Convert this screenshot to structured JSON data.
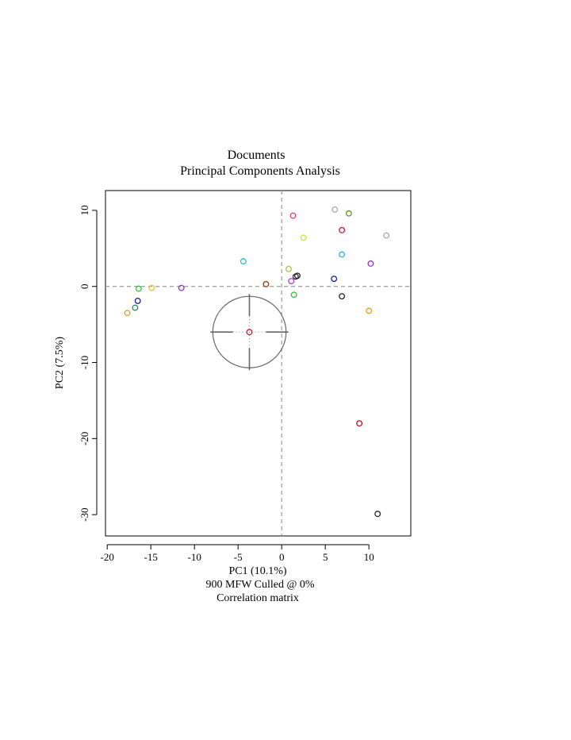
{
  "chart_data": {
    "type": "scatter",
    "title": "Documents",
    "subtitle": "Principal Components Analysis",
    "xlabel": "PC1 (10.1%)",
    "ylabel": "PC2 (7.5%)",
    "caption_lines": [
      "900 MFW  Culled @ 0%",
      "Correlation matrix"
    ],
    "xlim": [
      -20.2,
      14.8
    ],
    "ylim": [
      -32.8,
      12.6
    ],
    "x_ticks": [
      -20,
      -15,
      -10,
      -5,
      0,
      5,
      10
    ],
    "y_ticks": [
      -30,
      -20,
      -10,
      0,
      10
    ],
    "x_tick_labels": [
      "-20",
      "-15",
      "-10",
      "-5",
      "0",
      "5",
      "10"
    ],
    "y_tick_labels": [
      "-30",
      "-20",
      "-10",
      "0",
      "10"
    ],
    "grid": false,
    "reference_lines": {
      "x": 0,
      "y": 0,
      "style": "dashed",
      "color": "#9a9a9a"
    },
    "target_marker": {
      "x": -3.7,
      "y": -6.0,
      "radius_x": 4.2,
      "radius_y": 4.7,
      "color": "#666666",
      "point_color": "#e01030"
    },
    "points": [
      {
        "x": 1.3,
        "y": 9.3,
        "color": "#e0407f"
      },
      {
        "x": 6.1,
        "y": 10.1,
        "color": "#a8a8a8"
      },
      {
        "x": 7.7,
        "y": 9.6,
        "color": "#6b8e23"
      },
      {
        "x": 6.9,
        "y": 7.4,
        "color": "#d0105a"
      },
      {
        "x": 12.0,
        "y": 6.7,
        "color": "#a8a8a8"
      },
      {
        "x": 2.5,
        "y": 6.4,
        "color": "#c8e040"
      },
      {
        "x": 6.9,
        "y": 4.2,
        "color": "#22b8d8"
      },
      {
        "x": 10.2,
        "y": 3.0,
        "color": "#9030c0"
      },
      {
        "x": -4.4,
        "y": 3.3,
        "color": "#22b8d8"
      },
      {
        "x": 0.8,
        "y": 2.3,
        "color": "#b0c040"
      },
      {
        "x": 1.6,
        "y": 1.3,
        "color": "#222222"
      },
      {
        "x": 1.8,
        "y": 1.4,
        "color": "#222222"
      },
      {
        "x": 6.0,
        "y": 1.0,
        "color": "#1a1aa0"
      },
      {
        "x": 1.1,
        "y": 0.7,
        "color": "#b040d0"
      },
      {
        "x": -1.8,
        "y": 0.3,
        "color": "#8b4513"
      },
      {
        "x": -16.4,
        "y": -0.3,
        "color": "#30c030"
      },
      {
        "x": -14.9,
        "y": -0.2,
        "color": "#e0c040"
      },
      {
        "x": -11.5,
        "y": -0.2,
        "color": "#9030c0"
      },
      {
        "x": 1.4,
        "y": -1.1,
        "color": "#30c030"
      },
      {
        "x": 6.9,
        "y": -1.3,
        "color": "#222222"
      },
      {
        "x": -16.5,
        "y": -1.9,
        "color": "#1a1aa0"
      },
      {
        "x": -16.8,
        "y": -2.8,
        "color": "#2e8b57"
      },
      {
        "x": -17.7,
        "y": -3.5,
        "color": "#e0a020"
      },
      {
        "x": 10.0,
        "y": -3.2,
        "color": "#e0a020"
      },
      {
        "x": 8.9,
        "y": -18.0,
        "color": "#c01020"
      },
      {
        "x": 11.0,
        "y": -29.9,
        "color": "#222222"
      }
    ]
  }
}
